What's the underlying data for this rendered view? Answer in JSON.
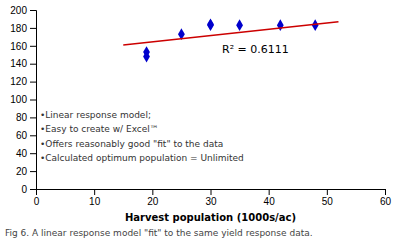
{
  "chart_data": {
    "type": "scatter",
    "x_label": "Harvest population (1000s/ac)",
    "caption": "Fig 6. A linear response model \"fit\" to the same yield response data.",
    "annotations": [
      "R² = 0.6111",
      "•Linear response model;",
      "•Easy to create w/ Excel™",
      "•Offers reasonably good \"fit\" to the data",
      "•Calculated optimum population = Unlimited"
    ],
    "series": [
      {
        "type": "scatter",
        "color": "#0000CC",
        "marker": "diamond",
        "x": [
          19,
          19,
          25,
          30,
          30,
          35,
          42,
          48
        ],
        "values": [
          153,
          148,
          173,
          183,
          184,
          183,
          183,
          183
        ]
      },
      {
        "type": "line",
        "color": "#CC0000",
        "line_style": "solid",
        "x": [
          15,
          52
        ],
        "values": [
          161,
          187
        ]
      }
    ],
    "xlim": [
      0,
      60
    ],
    "ylim": [
      0,
      200
    ],
    "xticks": [
      0,
      10,
      20,
      30,
      40,
      50,
      60
    ],
    "yticks": [
      0,
      20,
      40,
      60,
      80,
      100,
      120,
      140,
      160,
      180,
      200
    ]
  }
}
